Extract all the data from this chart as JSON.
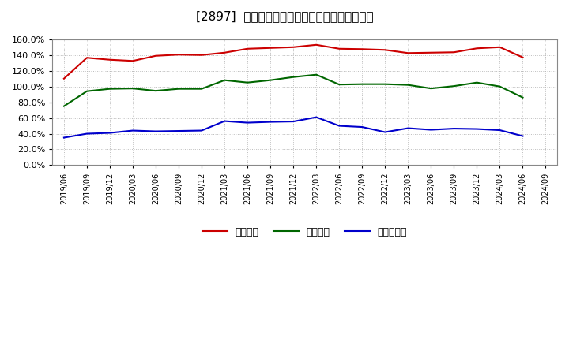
{
  "title": "[2897]  流動比率、当座比率、現預金比率の推移",
  "x_labels": [
    "2019/06",
    "2019/09",
    "2019/12",
    "2020/03",
    "2020/06",
    "2020/09",
    "2020/12",
    "2021/03",
    "2021/06",
    "2021/09",
    "2021/12",
    "2022/03",
    "2022/06",
    "2022/09",
    "2022/12",
    "2023/03",
    "2023/06",
    "2023/09",
    "2023/12",
    "2024/03",
    "2024/06",
    "2024/09"
  ],
  "current_ratio": [
    110.0,
    136.5,
    134.0,
    132.5,
    139.0,
    140.5,
    140.0,
    143.0,
    148.0,
    149.0,
    150.0,
    153.0,
    148.0,
    147.5,
    146.5,
    142.5,
    143.0,
    143.5,
    148.5,
    150.0,
    137.0,
    null
  ],
  "quick_ratio": [
    75.0,
    94.0,
    97.0,
    97.5,
    94.5,
    97.0,
    97.0,
    108.0,
    105.0,
    108.0,
    112.0,
    115.0,
    102.5,
    103.0,
    103.0,
    102.0,
    97.5,
    100.5,
    105.0,
    100.0,
    86.0,
    null
  ],
  "cash_ratio": [
    35.0,
    40.0,
    41.0,
    44.0,
    43.0,
    43.5,
    44.0,
    56.0,
    54.0,
    55.0,
    55.5,
    61.0,
    50.0,
    48.5,
    42.0,
    47.0,
    45.0,
    46.5,
    46.0,
    44.5,
    37.0,
    null
  ],
  "current_color": "#cc0000",
  "quick_color": "#006600",
  "cash_color": "#0000cc",
  "legend_labels": [
    "流動比率",
    "当座比率",
    "現預金比率"
  ],
  "ylim": [
    0,
    160
  ],
  "yticks": [
    0,
    20,
    40,
    60,
    80,
    100,
    120,
    140,
    160
  ],
  "background_color": "#ffffff",
  "plot_bg_color": "#ffffff",
  "grid_color": "#aaaaaa",
  "title_fontsize": 11
}
